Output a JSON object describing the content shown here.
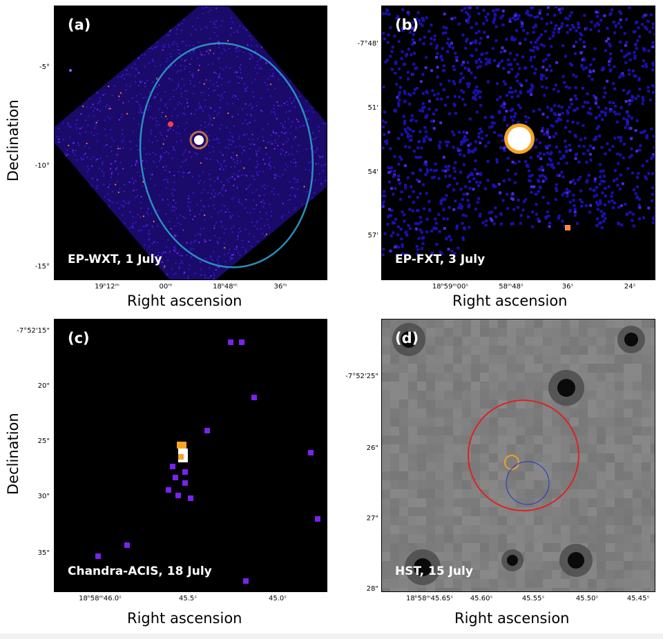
{
  "panels": {
    "a": {
      "label": "(a)",
      "caption": "EP-WXT, 1 July",
      "xlabel": "Right ascension",
      "ylabel": "Declination",
      "xticks": [
        "19ʰ12ᵐ",
        "00ᵐ",
        "18ʰ48ᵐ",
        "36ᵐ"
      ],
      "yticks": [
        "-5°",
        "-10°",
        "-15°"
      ]
    },
    "b": {
      "label": "(b)",
      "caption": "EP-FXT, 3 July",
      "xlabel": "Right ascension",
      "xticks": [
        "18ʰ59ᵐ00ˢ",
        "58ᵐ48ˢ",
        "36ˢ",
        "24ˢ"
      ],
      "yticks": [
        "-7°48'",
        "51'",
        "54'",
        "57'"
      ]
    },
    "c": {
      "label": "(c)",
      "caption": "Chandra-ACIS, 18 July",
      "xlabel": "Right ascension",
      "ylabel": "Declination",
      "xticks": [
        "18ʰ58ᵐ46.0ˢ",
        "45.5ˢ",
        "45.0ˢ"
      ],
      "yticks": [
        "-7°52'15\"",
        "20\"",
        "25\"",
        "30\"",
        "35\""
      ]
    },
    "d": {
      "label": "(d)",
      "caption": "HST, 15 July",
      "xlabel": "Right ascension",
      "xticks": [
        "18ʰ58ᵐ45.65ˢ",
        "45.60ˢ",
        "45.55ˢ",
        "45.50ˢ",
        "45.45ˢ"
      ],
      "yticks": [
        "-7°52'25\"",
        "26\"",
        "27\"",
        "28\""
      ]
    }
  },
  "colors": {
    "wxt_ellipse": "#2a8fc0",
    "hst_red_circle": "#e02020",
    "hst_orange_circle": "#f0a020",
    "hst_blue_circle": "#2030d0",
    "chandra_pixel": "#7a22f0",
    "hot_core": "#ffffff",
    "hot_edge": "#f5a623"
  }
}
